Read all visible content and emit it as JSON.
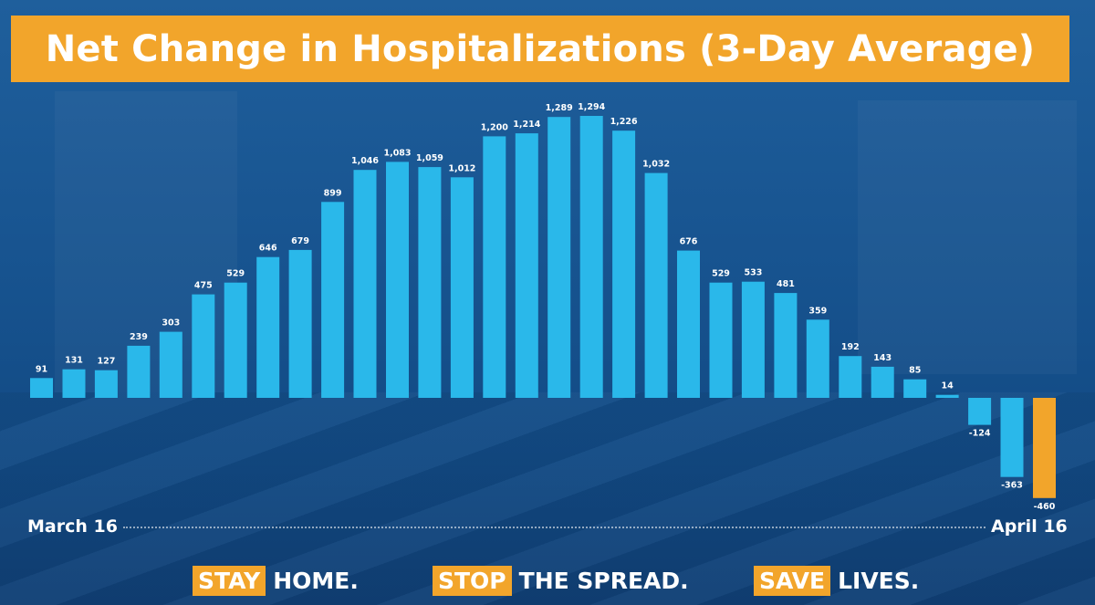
{
  "title": "Net Change in Hospitalizations (3-Day Average)",
  "x_start_label": "March 16",
  "x_end_label": "April 16",
  "slogans": [
    {
      "highlight": "STAY",
      "rest": "HOME."
    },
    {
      "highlight": "STOP",
      "rest": "THE SPREAD."
    },
    {
      "highlight": "SAVE",
      "rest": "LIVES."
    }
  ],
  "colors": {
    "bar": "#2ab8ea",
    "bar_highlight": "#f2a52b",
    "title_bg": "#f2a52b",
    "label": "#ffffff"
  },
  "chart_data": {
    "type": "bar",
    "title": "Net Change in Hospitalizations (3-Day Average)",
    "xlabel": "",
    "ylabel": "",
    "x_range_labels": [
      "March 16",
      "April 16"
    ],
    "values": [
      91,
      131,
      127,
      239,
      303,
      475,
      529,
      646,
      679,
      899,
      1046,
      1083,
      1059,
      1012,
      1200,
      1214,
      1289,
      1294,
      1226,
      1032,
      676,
      529,
      533,
      481,
      359,
      192,
      143,
      85,
      14,
      -124,
      -363,
      -460
    ],
    "value_labels": [
      "91",
      "131",
      "127",
      "239",
      "303",
      "475",
      "529",
      "646",
      "679",
      "899",
      "1,046",
      "1,083",
      "1,059",
      "1,012",
      "1,200",
      "1,214",
      "1,289",
      "1,294",
      "1,226",
      "1,032",
      "676",
      "529",
      "533",
      "481",
      "359",
      "192",
      "143",
      "85",
      "14",
      "-124",
      "-363",
      "-460"
    ],
    "highlighted_index": 31,
    "ylim": [
      -460,
      1294
    ],
    "grid": false,
    "legend": "none"
  }
}
